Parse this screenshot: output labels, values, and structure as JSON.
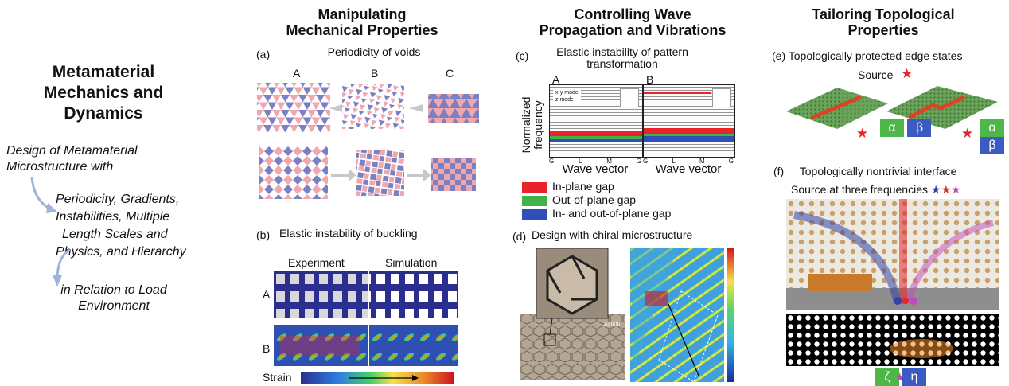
{
  "left": {
    "title_l1": "Metamaterial",
    "title_l2": "Mechanics and",
    "title_l3": "Dynamics",
    "design_l1": "Design of Metamaterial",
    "design_l2": "Microstructure with",
    "list_l1": "Periodicity, Gradients,",
    "list_l2": "Instabilities, Multiple",
    "list_l3": "Length Scales and",
    "list_l4": "Physics, and Hierarchy",
    "relation_l1": "in Relation to Load",
    "relation_l2": "Environment"
  },
  "col1": {
    "header_l1": "Manipulating",
    "header_l2": "Mechanical Properties",
    "panel_a_label": "(a)",
    "panel_a_title": "Periodicity of voids",
    "col_A": "A",
    "col_B": "B",
    "col_C": "C",
    "panel_b_label": "(b)",
    "panel_b_title": "Elastic instability of buckling",
    "experiment": "Experiment",
    "simulation": "Simulation",
    "row_A": "A",
    "row_B": "B",
    "strain": "Strain"
  },
  "col2": {
    "header_l1": "Controlling Wave",
    "header_l2": "Propagation and Vibrations",
    "panel_c_label": "(c)",
    "panel_c_title_l1": "Elastic instability of pattern",
    "panel_c_title_l2": "transformation",
    "plot_A": "A",
    "plot_B": "B",
    "xy_mode": "x-y mode",
    "z_mode": "z mode",
    "ylabel_l1": "Normalized",
    "ylabel_l2": "frequency",
    "xlabel": "Wave vector",
    "ticks": [
      "G",
      "L",
      "M",
      "G"
    ],
    "legend": [
      {
        "label": "In-plane gap",
        "color": "#e8232a"
      },
      {
        "label": "Out-of-plane gap",
        "color": "#3fb24a"
      },
      {
        "label": "In- and out-of-plane gap",
        "color": "#2f4fb5"
      }
    ],
    "panel_d_label": "(d)",
    "panel_d_title": "Design with chiral microstructure",
    "scale_bar": "10 mm"
  },
  "col3": {
    "header_l1": "Tailoring Topological",
    "header_l2": "Properties",
    "panel_e_label": "(e)",
    "panel_e_title": "Topologically protected edge states",
    "source": "Source",
    "alpha": "α",
    "beta": "β",
    "panel_f_label": "(f)",
    "panel_f_title": "Topologically nontrivial interface",
    "source_three": "Source at three frequencies",
    "zeta": "ζ",
    "eta": "η"
  },
  "colors": {
    "pink": "#f2a7ad",
    "purple": "#7b7fc4",
    "navy": "#2a2f8f",
    "star_red": "#e3262b",
    "star_blue": "#3341a3",
    "star_magenta": "#c24ab8",
    "green_box": "#4fb74a",
    "blue_box": "#3c5bc2",
    "arrow_blue": "#9fb3dd"
  }
}
